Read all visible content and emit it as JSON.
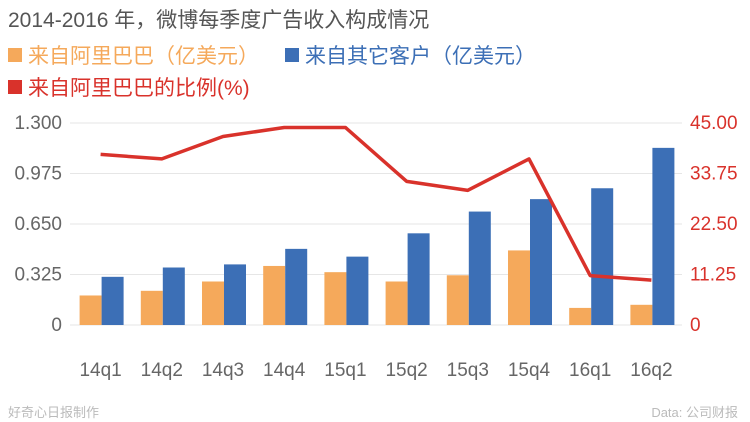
{
  "title": "2014-2016 年，微博每季度广告收入构成情况",
  "legend": {
    "alibaba": "来自阿里巴巴（亿美元）",
    "others": "来自其它客户（亿美元）",
    "ratio": "来自阿里巴巴的比例(%)"
  },
  "footer": {
    "left": "好奇心日报制作",
    "right": "Data: 公司财报"
  },
  "colors": {
    "alibaba": "#F5A95B",
    "others": "#3C6FB6",
    "ratio": "#D9322B",
    "axis": "#666666",
    "rightAxis": "#D9322B",
    "grid": "#e6e6e6"
  },
  "chart_data": {
    "type": "bar",
    "categories": [
      "14q1",
      "14q2",
      "14q3",
      "14q4",
      "15q1",
      "15q2",
      "15q3",
      "15q4",
      "16q1",
      "16q2"
    ],
    "series": [
      {
        "name": "来自阿里巴巴（亿美元）",
        "type": "bar",
        "axis": "left",
        "values": [
          0.19,
          0.22,
          0.28,
          0.38,
          0.34,
          0.28,
          0.32,
          0.48,
          0.11,
          0.13
        ]
      },
      {
        "name": "来自其它客户（亿美元）",
        "type": "bar",
        "axis": "left",
        "values": [
          0.31,
          0.37,
          0.39,
          0.49,
          0.44,
          0.59,
          0.73,
          0.81,
          0.88,
          1.14
        ]
      },
      {
        "name": "来自阿里巴巴的比例(%)",
        "type": "line",
        "axis": "right",
        "values": [
          38,
          37,
          42,
          44,
          44,
          32,
          30,
          37,
          11,
          10
        ]
      }
    ],
    "yLeft": {
      "ticks": [
        "1.300",
        "0.975",
        "0.650",
        "0.325",
        "0"
      ],
      "tickValues": [
        1.3,
        0.975,
        0.65,
        0.325,
        0
      ],
      "ylim": [
        0,
        1.3
      ]
    },
    "yRight": {
      "ticks": [
        "45.00",
        "33.75",
        "22.50",
        "11.25",
        "0"
      ],
      "tickValues": [
        45,
        33.75,
        22.5,
        11.25,
        0
      ],
      "ylim": [
        0,
        45
      ]
    },
    "grid": true
  }
}
